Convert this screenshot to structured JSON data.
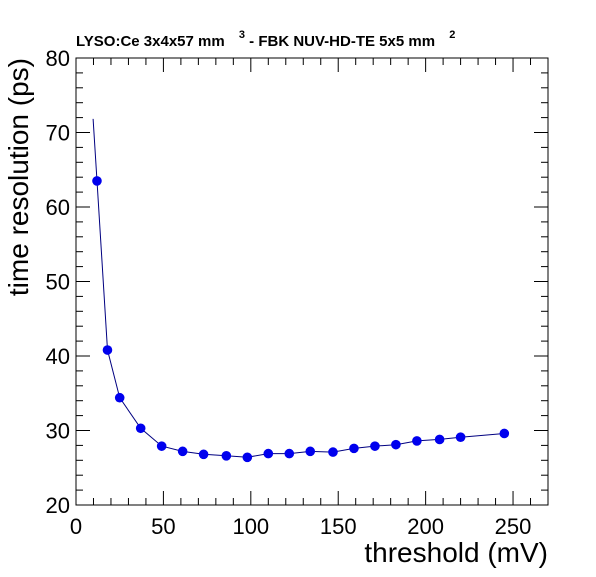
{
  "chart_data": {
    "type": "line",
    "title_parts": [
      "LYSO:Ce 3x4x57 mm",
      "3",
      " - FBK NUV-HD-TE 5x5 mm",
      "2"
    ],
    "xlabel": "threshold (mV)",
    "ylabel": "time resolution (ps)",
    "xlim": [
      0,
      270
    ],
    "ylim": [
      20,
      80
    ],
    "x_ticks": [
      0,
      50,
      100,
      150,
      200,
      250
    ],
    "y_ticks": [
      20,
      30,
      40,
      50,
      60,
      70,
      80
    ],
    "x_tick_labels": [
      "0",
      "50",
      "100",
      "150",
      "200",
      "250"
    ],
    "y_tick_labels": [
      "20",
      "30",
      "40",
      "50",
      "60",
      "70",
      "80"
    ],
    "x_minor_step": 10,
    "y_minor_step": 2,
    "grid": false,
    "marker_color": "#0000ee",
    "line_color": "#000080",
    "series": [
      {
        "x": [
          12,
          18,
          25,
          37,
          49,
          61,
          73,
          86,
          98,
          110,
          122,
          134,
          147,
          159,
          171,
          183,
          195,
          208,
          220,
          245
        ],
        "y": [
          63.5,
          40.8,
          34.4,
          30.3,
          27.9,
          27.2,
          26.8,
          26.6,
          26.4,
          26.9,
          26.9,
          27.2,
          27.1,
          27.6,
          27.9,
          28.1,
          28.6,
          28.8,
          29.1,
          29.6
        ]
      }
    ]
  }
}
